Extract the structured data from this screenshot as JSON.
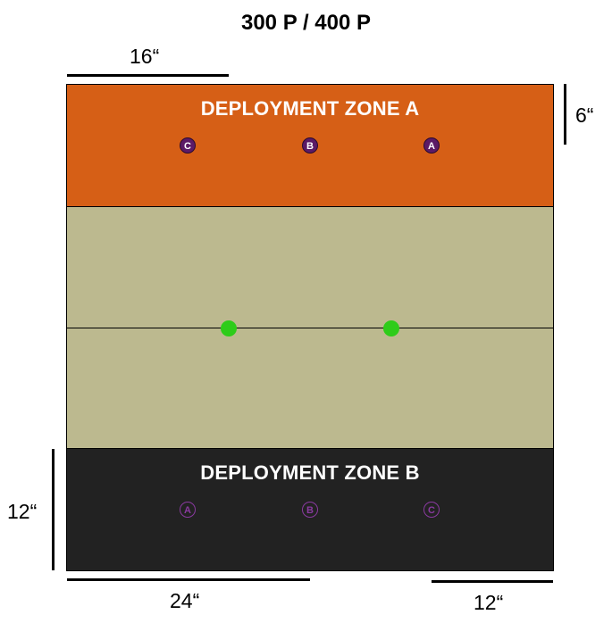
{
  "title": "300 P / 400 P",
  "dimensions": {
    "top_left": "16“",
    "right_top": "6“",
    "left_bottom": "12“",
    "bottom_left": "24“",
    "bottom_right": "12“"
  },
  "zone_a": {
    "title": "DEPLOYMENT ZONE A",
    "color": "#d65f16",
    "markers": [
      "C",
      "B",
      "A"
    ],
    "marker_color": "#5b1a66"
  },
  "zone_b": {
    "title": "DEPLOYMENT ZONE B",
    "color": "#222222",
    "markers": [
      "A",
      "B",
      "C"
    ],
    "marker_color": "#8a3aa0"
  },
  "board": {
    "color": "#bcb98f"
  },
  "objective_color": "#2ecc1a"
}
